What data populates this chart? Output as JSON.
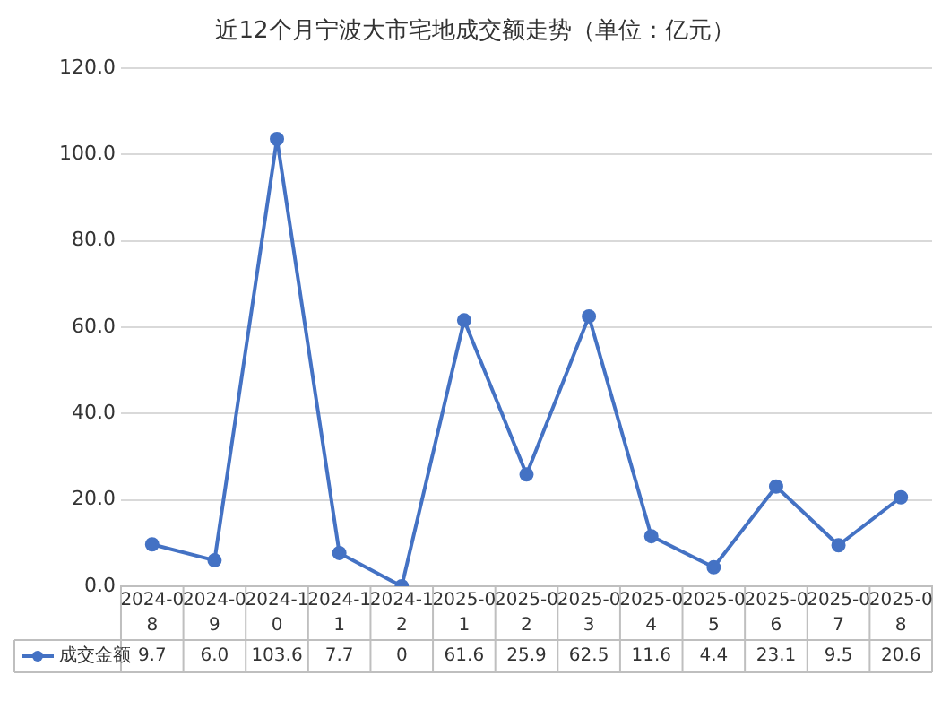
{
  "chart_data": {
    "type": "line",
    "title": "近12个月宁波大市宅地成交额走势（单位：亿元）",
    "categories": [
      "2024-08",
      "2024-09",
      "2024-10",
      "2024-11",
      "2024-12",
      "2025-01",
      "2025-02",
      "2025-03",
      "2025-04",
      "2025-05",
      "2025-06",
      "2025-07",
      "2025-08"
    ],
    "series": [
      {
        "name": "成交金额",
        "color": "#4472c4",
        "values": [
          9.7,
          6.0,
          103.6,
          7.7,
          0,
          61.6,
          25.9,
          62.5,
          11.6,
          4.4,
          23.1,
          9.5,
          20.6
        ],
        "value_labels": [
          "9.7",
          "6.0",
          "103.6",
          "7.7",
          "0",
          "61.6",
          "25.9",
          "62.5",
          "11.6",
          "4.4",
          "23.1",
          "9.5",
          "20.6"
        ]
      }
    ],
    "ylim": [
      0,
      120
    ],
    "yticks": [
      {
        "value": 0,
        "label": "0.0"
      },
      {
        "value": 20,
        "label": "20.0"
      },
      {
        "value": 40,
        "label": "40.0"
      },
      {
        "value": 60,
        "label": "60.0"
      },
      {
        "value": 80,
        "label": "80.0"
      },
      {
        "value": 100,
        "label": "100.0"
      },
      {
        "value": 120,
        "label": "120.0"
      }
    ],
    "grid": "y",
    "legend": "bottom left",
    "marker": "circle",
    "line_style": "solid"
  }
}
